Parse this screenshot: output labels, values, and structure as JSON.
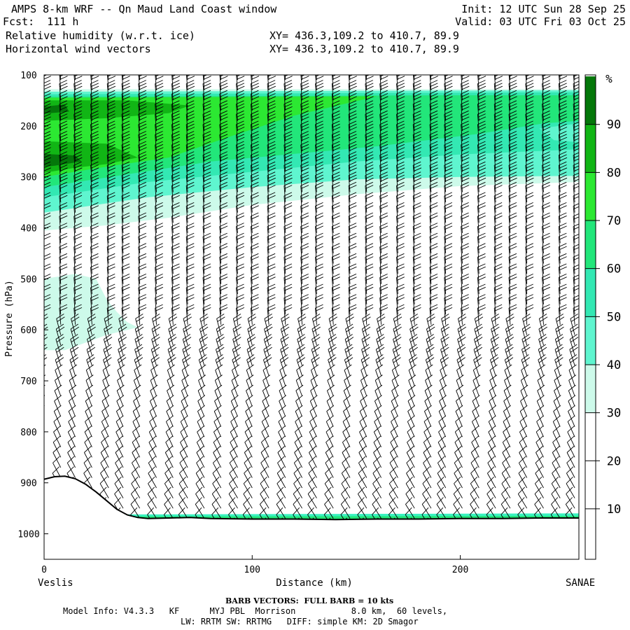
{
  "header": {
    "title": "AMPS 8-km WRF -- Qn Maud Land Coast window",
    "forecast": "Fcst:  111 h",
    "init": "Init: 12 UTC Sun 28 Sep 25",
    "valid": "Valid: 03 UTC Fri 03 Oct 25",
    "field1": "Relative humidity (w.r.t. ice)",
    "field2": "Horizontal wind vectors",
    "xy1": "XY= 436.3,109.2 to 410.7, 89.9",
    "xy2": "XY= 436.3,109.2 to 410.7, 89.9"
  },
  "footer": {
    "barb_note": "BARB VECTORS:  FULL BARB = 10 kts",
    "model_line1": "Model Info: V4.3.3   KF      MYJ PBL  Morrison           8.0 km,  60 levels,",
    "model_line2": "LW: RRTM SW: RRTMG   DIFF: simple KM: 2D Smagor"
  },
  "colors": {
    "c30": "#cdfaea",
    "c40": "#5ff5cf",
    "c50": "#33e8b3",
    "c60": "#22e67a",
    "c70": "#2ce832",
    "c80": "#11b515",
    "c90": "#04770a",
    "terrain_line": "#000000",
    "surface_band": "#3af2c0"
  },
  "chart_data": {
    "type": "heatmap",
    "title": "Relative humidity (w.r.t. ice) and horizontal wind vectors",
    "xlabel": "Distance (km)",
    "ylabel": "Pressure (hPa)",
    "xlim": [
      0,
      257
    ],
    "ylim": [
      1050,
      100
    ],
    "x_ticks": [
      0,
      100,
      200
    ],
    "x_tick_labels": [
      "0",
      "100",
      "200"
    ],
    "y_ticks": [
      100,
      200,
      300,
      400,
      500,
      600,
      700,
      800,
      900,
      1000
    ],
    "y_tick_labels": [
      "100",
      "200",
      "300",
      "400",
      "500",
      "600",
      "700",
      "800",
      "900",
      "1000"
    ],
    "left_endpoint": "Veslis",
    "right_endpoint": "SANAE",
    "colorbar": {
      "unit": "%",
      "levels": [
        10,
        20,
        30,
        40,
        50,
        60,
        70,
        80,
        90
      ],
      "labels": [
        "10",
        "20",
        "30",
        "40",
        "50",
        "60",
        "70",
        "80",
        "90"
      ]
    },
    "terrain_surface_pressure": {
      "x": [
        0,
        5,
        10,
        15,
        20,
        25,
        30,
        35,
        40,
        45,
        50,
        60,
        70,
        80,
        100,
        120,
        140,
        160,
        180,
        200,
        220,
        240,
        257
      ],
      "p": [
        893,
        888,
        887,
        892,
        903,
        918,
        935,
        952,
        963,
        968,
        970,
        969,
        968,
        970,
        971,
        971,
        972,
        971,
        971,
        970,
        970,
        969,
        969
      ]
    },
    "rh_contours": [
      {
        "level": 30,
        "kind": "upper_moist_layer_bottom",
        "x": [
          0,
          30,
          60,
          100,
          150,
          200,
          257
        ],
        "p": [
          405,
          395,
          380,
          355,
          335,
          320,
          310
        ]
      },
      {
        "level": 30,
        "kind": "midlevel_moist_patch",
        "x": [
          0,
          15,
          25,
          30,
          35,
          40,
          45,
          40,
          30,
          20,
          10,
          0
        ],
        "p": [
          500,
          490,
          500,
          540,
          565,
          585,
          595,
          600,
          610,
          625,
          640,
          640
        ]
      },
      {
        "level": 40,
        "kind": "upper_layer",
        "x": [
          0,
          50,
          100,
          150,
          200,
          257
        ],
        "p": [
          370,
          340,
          320,
          305,
          300,
          298
        ]
      },
      {
        "level": 50,
        "kind": "upper_layer",
        "x": [
          0,
          50,
          100,
          150,
          200,
          257
        ],
        "p": [
          340,
          310,
          290,
          270,
          255,
          245
        ]
      },
      {
        "level": 60,
        "kind": "upper_layer",
        "x": [
          0,
          40,
          80,
          120,
          160,
          200
        ],
        "p": [
          320,
          295,
          270,
          255,
          240,
          225
        ]
      },
      {
        "level": 70,
        "kind": "upper_layer",
        "x": [
          0,
          30,
          60,
          90,
          120
        ],
        "p": [
          300,
          280,
          262,
          250,
          240
        ]
      },
      {
        "level": 80,
        "kind": "upper_layer_core",
        "x": [
          0,
          15,
          30,
          40
        ],
        "p": [
          290,
          275,
          265,
          262
        ]
      },
      {
        "level": 80,
        "kind": "tropopause_core",
        "x": [
          0,
          20,
          40,
          60
        ],
        "p": [
          170,
          165,
          168,
          175
        ]
      }
    ],
    "wind_barbs": {
      "unit": "kts",
      "full_barb_value": 10,
      "columns_x_km": [
        0,
        8,
        15,
        23,
        31,
        38,
        46,
        54,
        62,
        69,
        77,
        85,
        93,
        100,
        108,
        116,
        124,
        131,
        139,
        147,
        155,
        162,
        170,
        178,
        186,
        193,
        201,
        209,
        217,
        224,
        232,
        240,
        248,
        255
      ],
      "levels_hPa": [
        110,
        130,
        150,
        170,
        190,
        210,
        230,
        250,
        270,
        290,
        310,
        330,
        350,
        370,
        390,
        410,
        430,
        450,
        470,
        490,
        510,
        530,
        550,
        570,
        590,
        610,
        630,
        650,
        670,
        690,
        710,
        730,
        750,
        770,
        790,
        810,
        830,
        850,
        870,
        890,
        910,
        930,
        950,
        970,
        990,
        1010
      ]
    }
  }
}
